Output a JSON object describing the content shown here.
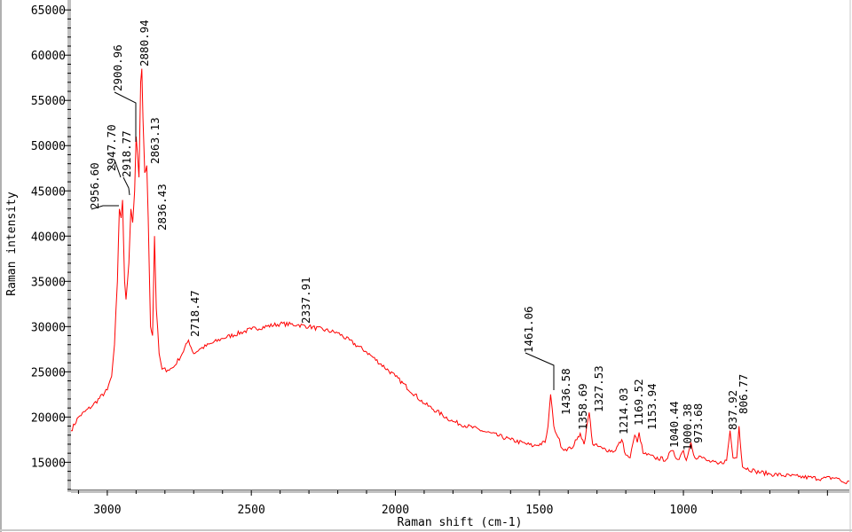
{
  "chart_data": {
    "type": "line",
    "title": "",
    "xlabel": "Raman shift (cm-1)",
    "ylabel": "Raman intensity",
    "xlim": [
      3126,
      424
    ],
    "ylim": [
      11900,
      65900
    ],
    "x_reversed": true,
    "grid": false,
    "line_color": "#ff0000",
    "x_ticks": [
      3000,
      2500,
      2000,
      1500,
      1000
    ],
    "y_ticks": [
      15000,
      20000,
      25000,
      30000,
      35000,
      40000,
      45000,
      50000,
      55000,
      60000,
      65000
    ],
    "series": [
      {
        "x": [
          3126,
          3100,
          3050,
          3000,
          2985,
          2975,
          2965,
          2958,
          2952,
          2947,
          2940,
          2935,
          2925,
          2918,
          2912,
          2905,
          2900,
          2895,
          2890,
          2884,
          2880,
          2876,
          2870,
          2863,
          2858,
          2850,
          2843,
          2836,
          2830,
          2820,
          2810,
          2790,
          2770,
          2740,
          2718,
          2700,
          2680,
          2600,
          2500,
          2400,
          2340,
          2300,
          2200,
          2100,
          2000,
          1900,
          1800,
          1700,
          1600,
          1520,
          1480,
          1470,
          1461,
          1450,
          1436,
          1420,
          1390,
          1370,
          1358,
          1345,
          1327,
          1315,
          1280,
          1240,
          1214,
          1200,
          1185,
          1169,
          1160,
          1154,
          1140,
          1100,
          1060,
          1040,
          1020,
          1000,
          990,
          974,
          960,
          945,
          920,
          880,
          850,
          838,
          828,
          815,
          807,
          795,
          750,
          700,
          600,
          520,
          470,
          440,
          424
        ],
        "y": [
          18500,
          20000,
          21300,
          23000,
          24500,
          28000,
          35000,
          43000,
          42000,
          44000,
          35000,
          33000,
          37000,
          43000,
          41500,
          45000,
          51000,
          49000,
          46500,
          57000,
          58500,
          53000,
          47000,
          47800,
          42000,
          30000,
          29000,
          40000,
          32000,
          27000,
          25300,
          25200,
          25500,
          27000,
          28500,
          27000,
          27500,
          28700,
          29700,
          30300,
          30200,
          30000,
          29300,
          27200,
          24500,
          21500,
          19500,
          18500,
          17500,
          16800,
          17200,
          19000,
          22500,
          19000,
          17800,
          16500,
          16500,
          17500,
          18200,
          17000,
          20500,
          17000,
          16500,
          16200,
          17500,
          15800,
          15500,
          18000,
          17200,
          18300,
          16000,
          15500,
          15300,
          16300,
          15300,
          16300,
          15200,
          17200,
          15500,
          15700,
          15200,
          14800,
          15200,
          18500,
          15500,
          15500,
          19000,
          14500,
          14000,
          13700,
          13400,
          13200,
          13300,
          12700,
          12900
        ]
      }
    ],
    "peak_labels": [
      "2956.60",
      "2947.70",
      "2918.77",
      "2900.96",
      "2880.94",
      "2863.13",
      "2836.43",
      "2718.47",
      "2337.91",
      "1461.06",
      "1436.58",
      "1358.69",
      "1327.53",
      "1214.03",
      "1169.52",
      "1153.94",
      "1040.44",
      "1000.38",
      "973.68",
      "837.92",
      "806.77"
    ]
  }
}
